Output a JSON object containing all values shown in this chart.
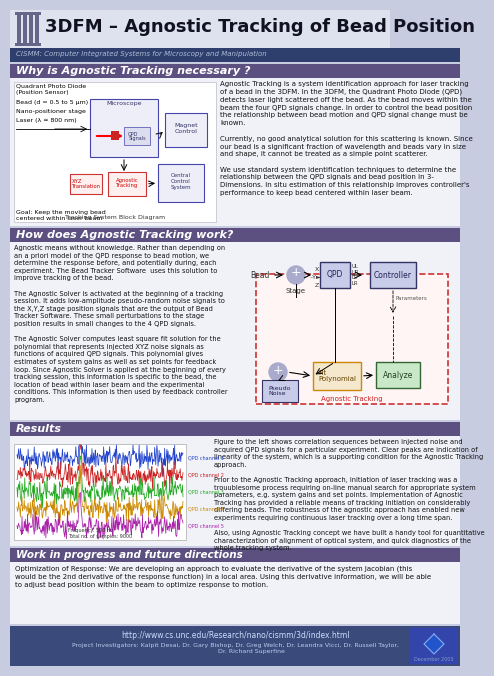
{
  "title": "3DFM – Agnostic Tracking of Bead Position",
  "subtitle": "CISMM: Computer Integrated Systems for Microscopy and Manipulation",
  "header_bg_top": "#e8eaf5",
  "header_bg_bottom": "#2e3f6e",
  "section1_title": "Why is Agnostic Tracking necessary ?",
  "section2_title": "How does Agnostic Tracking work?",
  "section3_title": "Results",
  "section4_title": "Work in progress and future directions",
  "section_header_bg": "#5c5080",
  "body_bg": "#f0f2f8",
  "footer_bg": "#3a4a7a",
  "footer_url": "http://www.cs.unc.edu/Research/nano/cismm/3d/index.html",
  "footer_investigators": "Project Investigators: Kalpit Desai, Dr. Gary Bishop, Dr. Greg Welch, Dr. Leandra Vicci, Dr. Russell Taylor,\n                Dr. Richard Superfine",
  "section1_right": "Agnostic Tracking is a system identification approach for laser tracking\nof a bead in the 3DFM. In the 3DFM, the Quadrant Photo Diode (QPD)\ndetects laser light scattered off the bead. As the bead moves within the\nbeam the four QPD signals change. In order to control the bead position\nthe relationship between bead motion and QPD signal change must be\nknown.\n\nCurrently, no good analytical solution for this scattering is known. Since\nour bead is a significant fraction of wavelength and beads vary in size\nand shape, it cannot be treated as a simple point scatterer.\n\nWe use standard system identification techniques to determine the\nrelationship between the QPD signals and bead position in 3-\nDimensions. In situ estimation of this relationship improves controller's\nperformance to keep bead centered within laser beam.",
  "section2_left": "Agnostic means without knowledge. Rather than depending on\nan a priori model of the QPD response to bead motion, we\ndetermine the response before, and potentially during, each\nexperiment. The Bead Tracker Software  uses this solution to\nimprove tracking of the bead.\n\nThe Agnostic Solver is activated at the beginning of a tracking\nsession. It adds low-amplitude pseudo-random noise signals to\nthe X,Y,Z stage position signals that are the output of Bead\nTracker Software. These small perturbations to the stage\nposition results in small changes to the 4 QPD signals.\n\nThe Agnostic Solver computes least square fit solution for the\npolynomial that represents injected XYZ noise signals as\nfunctions of acquired QPD signals. This polynomial gives\nestimates of system gains as well as set points for feedback\nloop. Since Agnostic Solver is applied at the beginning of every\ntracking session, this information is specific to the bead, the\nlocation of bead within laser beam and the experimental\nconditions. This information is then used by feedback controller\nprogram.",
  "section3_right": "Figure to the left shows correlation sequences between injected noise and\nacquired QPD signals for a particular experiment. Clear peaks are indication of\nlinearity of the system, which is a supporting condition for the Agnostic Tracking\napproach.\n\nPrior to the Agnostic Tracking approach, initiation of laser tracking was a\ntrouublesome process requiring on-line manual search for appropriate system\nparameters, e.g. system gains and set points. Implementation of Agnostic\nTracking has provided a reliable means of tracking initiation on considerably\ndiffering beads. The robustness of the agnostic approach has enabled new\nexperiments requiring continuous laser tracking over a long time span.\n\nAlso, using Agnostic Tracking concept we have built a handy tool for quantitative\ncharacterization of alignment of optical system, and quick diagnostics of the\nwhole tracking system.",
  "section4_text": "Optimization of Response: We are developing an approach to evaluate the derivative of the system Jacobian (this\nwould be the 2nd derivative of the response function) in a local area. Using this derivative information, we will be able\nto adjust bead position within the beam to optimize response to motion.",
  "poster_bg": "#c8cce0"
}
